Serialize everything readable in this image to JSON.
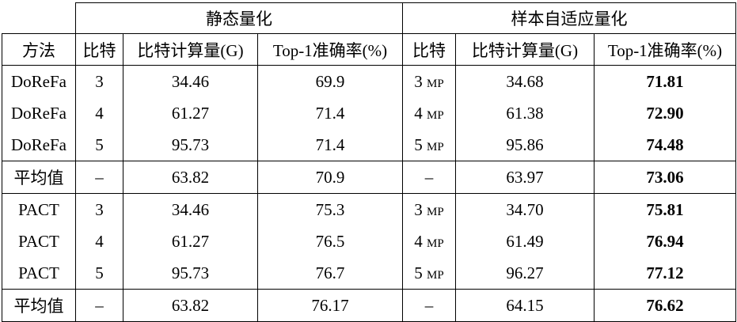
{
  "groups": {
    "static": "静态量化",
    "adaptive": "样本自适应量化"
  },
  "columns": {
    "method": "方法",
    "bits": "比特",
    "bitops": "比特计算量(G)",
    "top1": "Top-1准确率(%)",
    "bits2": "比特",
    "bitops2": "比特计算量(G)",
    "top1_2": "Top-1准确率(%)"
  },
  "rows": [
    {
      "method": "DoReFa",
      "bits": "3",
      "bitops": "34.46",
      "top1": "69.9",
      "abits": "3",
      "mp": "MP",
      "abitops": "34.68",
      "atop1": "71.81"
    },
    {
      "method": "DoReFa",
      "bits": "4",
      "bitops": "61.27",
      "top1": "71.4",
      "abits": "4",
      "mp": "MP",
      "abitops": "61.38",
      "atop1": "72.90"
    },
    {
      "method": "DoReFa",
      "bits": "5",
      "bitops": "95.73",
      "top1": "71.4",
      "abits": "5",
      "mp": "MP",
      "abitops": "95.86",
      "atop1": "74.48"
    },
    {
      "method": "平均值",
      "bits": "–",
      "bitops": "63.82",
      "top1": "70.9",
      "abits": "–",
      "mp": "",
      "abitops": "63.97",
      "atop1": "73.06"
    },
    {
      "method": "PACT",
      "bits": "3",
      "bitops": "34.46",
      "top1": "75.3",
      "abits": "3",
      "mp": "MP",
      "abitops": "34.70",
      "atop1": "75.81"
    },
    {
      "method": "PACT",
      "bits": "4",
      "bitops": "61.27",
      "top1": "76.5",
      "abits": "4",
      "mp": "MP",
      "abitops": "61.49",
      "atop1": "76.94"
    },
    {
      "method": "PACT",
      "bits": "5",
      "bitops": "95.73",
      "top1": "76.7",
      "abits": "5",
      "mp": "MP",
      "abitops": "96.27",
      "atop1": "77.12"
    },
    {
      "method": "平均值",
      "bits": "–",
      "bitops": "63.82",
      "top1": "76.17",
      "abits": "–",
      "mp": "",
      "abitops": "64.15",
      "atop1": "76.62"
    }
  ]
}
